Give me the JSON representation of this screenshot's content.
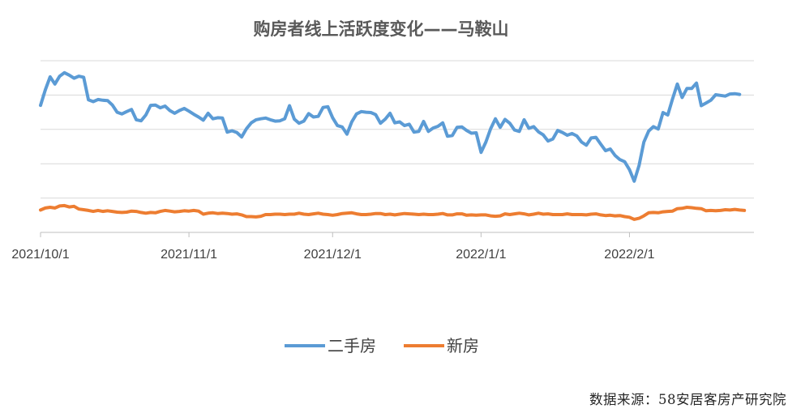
{
  "chart_data": {
    "type": "line",
    "title": "购房者线上活跃度变化——马鞍山",
    "xlabel": "",
    "ylabel": "",
    "x_start": "2021/10/1",
    "x_end": "2022/2/27",
    "x_ticks": [
      "2021/10/1",
      "2021/11/1",
      "2021/12/1",
      "2022/1/1",
      "2022/2/1"
    ],
    "ylim": [
      0,
      50
    ],
    "y_gridlines": [
      0,
      10,
      20,
      30,
      40,
      50
    ],
    "y_tick_labels_shown": false,
    "grid": true,
    "legend_position": "bottom",
    "series": [
      {
        "name": "二手房",
        "color": "#5b9bd5",
        "values": [
          37,
          41.5,
          45.3,
          43.2,
          45.5,
          46.5,
          45.8,
          44.9,
          45.5,
          45.2,
          38.6,
          38.1,
          38.7,
          38.5,
          38.4,
          37.1,
          35,
          34.5,
          35.2,
          35.8,
          32.8,
          32.5,
          34.2,
          37,
          37.1,
          36.3,
          36.8,
          35.5,
          34.7,
          35.5,
          36.1,
          35.3,
          34.4,
          33.6,
          32.7,
          34.7,
          33.1,
          33.4,
          33.3,
          29.2,
          29.6,
          29.1,
          27.8,
          30.2,
          31.9,
          32.8,
          33.1,
          33.3,
          32.8,
          32.4,
          32.5,
          33.1,
          36.9,
          33,
          31.8,
          32.4,
          34.6,
          33.6,
          33.8,
          36.4,
          36.6,
          33.4,
          31.1,
          30.7,
          28.6,
          32.2,
          34.5,
          35.2,
          35,
          34.9,
          34.3,
          31.8,
          33,
          34.7,
          31.9,
          32.2,
          31.1,
          31.5,
          29.2,
          29.4,
          32.3,
          29.4,
          30.4,
          30.9,
          31.9,
          28,
          28.2,
          30.6,
          30.7,
          29.7,
          28.9,
          29,
          23.3,
          26.3,
          30.2,
          33.1,
          30.6,
          32.9,
          31.8,
          29.8,
          29.4,
          32.8,
          30.3,
          30.8,
          29.3,
          28.4,
          26.6,
          27.2,
          29.7,
          29.1,
          28.3,
          28.8,
          28.1,
          26.3,
          25.4,
          27.5,
          27.7,
          25.7,
          23.8,
          24.3,
          22.4,
          21.2,
          20.6,
          18.3,
          14.9,
          19.5,
          26.3,
          29.5,
          30.8,
          30.1,
          34.9,
          34.2,
          38.9,
          43.2,
          39.3,
          41.9,
          41.9,
          43.5,
          36.9,
          37.7,
          38.5,
          40.1,
          39.9,
          39.7,
          40.3,
          40.4,
          40.2
        ]
      },
      {
        "name": "新房",
        "color": "#ed7d31",
        "values": [
          6.5,
          7.1,
          7.3,
          7.1,
          7.7,
          7.8,
          7.4,
          7.6,
          6.8,
          6.6,
          6.4,
          6.1,
          6.4,
          6.1,
          6.3,
          6.1,
          5.9,
          5.8,
          5.9,
          6.2,
          6.1,
          5.8,
          5.6,
          5.8,
          5.7,
          6.1,
          6.4,
          6.2,
          6,
          6.1,
          6.3,
          6.2,
          6.4,
          6.2,
          5.3,
          5.6,
          5.7,
          5.5,
          5.6,
          5.5,
          5.3,
          5.4,
          5.1,
          4.6,
          4.6,
          4.5,
          4.7,
          5.2,
          5.2,
          5.3,
          5.3,
          5.2,
          5.3,
          5.3,
          5.6,
          5.3,
          5.2,
          5.4,
          5.6,
          5.3,
          5.2,
          5,
          5.2,
          5.5,
          5.6,
          5.7,
          5.4,
          5.2,
          5.2,
          5.3,
          5.5,
          5.5,
          5.2,
          5.3,
          5.1,
          5.3,
          5.5,
          5.4,
          5.3,
          5.2,
          5.3,
          5.2,
          5.2,
          5.3,
          5.5,
          5.1,
          5.1,
          5.4,
          5.4,
          5,
          5.1,
          5,
          5.1,
          5.1,
          4.8,
          4.7,
          4.8,
          5.4,
          5.2,
          5.4,
          5.6,
          5.4,
          5.1,
          5.3,
          5.6,
          5.3,
          5.4,
          5.2,
          5.2,
          5.2,
          5.4,
          5.2,
          5.2,
          5.2,
          5.1,
          5.3,
          5.4,
          5.1,
          4.9,
          5,
          4.8,
          4.9,
          4.6,
          4.4,
          3.8,
          4.1,
          4.8,
          5.7,
          5.8,
          5.7,
          6,
          6.1,
          6.2,
          6.9,
          7,
          7.3,
          7.2,
          7,
          6.9,
          6.3,
          6.4,
          6.3,
          6.4,
          6.6,
          6.5,
          6.7,
          6.5,
          6.4
        ]
      }
    ]
  },
  "source": "数据来源：58安居客房产研究院"
}
